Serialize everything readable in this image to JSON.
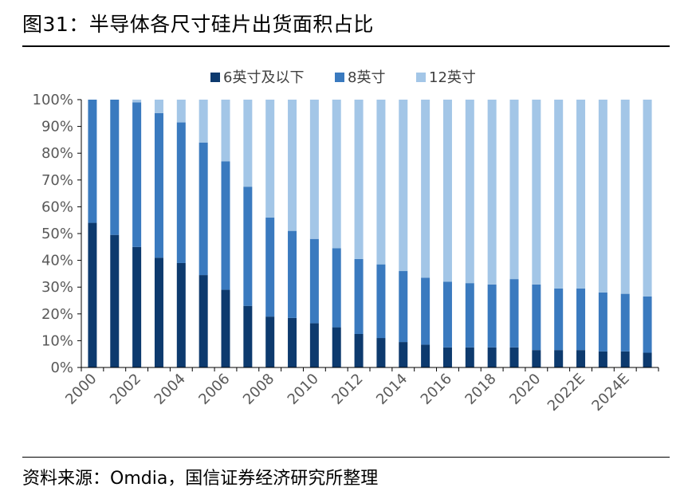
{
  "title": "图31：半导体各尺寸硅片出货面积占比",
  "source": "资料来源：Omdia，国信证券经济研究所整理",
  "colors": {
    "s6": "#0d3a6e",
    "s8": "#3a7abf",
    "s12": "#a3c6e7",
    "axis": "#000000",
    "text": "#595959"
  },
  "chart_data": {
    "type": "bar",
    "stacked": true,
    "percent": true,
    "categories": [
      "2000",
      "2001",
      "2002",
      "2003",
      "2004",
      "2005",
      "2006",
      "2007",
      "2008",
      "2009",
      "2010",
      "2011",
      "2012",
      "2013",
      "2014",
      "2015",
      "2016",
      "2017",
      "2018",
      "2019",
      "2020",
      "2021",
      "2022E",
      "2023E",
      "2024E",
      "2025E"
    ],
    "x_tick_labels": [
      "2000",
      "",
      "2002",
      "",
      "2004",
      "",
      "2006",
      "",
      "2008",
      "",
      "2010",
      "",
      "2012",
      "",
      "2014",
      "",
      "2016",
      "",
      "2018",
      "",
      "2020",
      "",
      "2022E",
      "",
      "2024E",
      ""
    ],
    "y_tick_labels": [
      "0%",
      "10%",
      "20%",
      "30%",
      "40%",
      "50%",
      "60%",
      "70%",
      "80%",
      "90%",
      "100%"
    ],
    "ylim": [
      0,
      100
    ],
    "legend_position": "top-center",
    "series": [
      {
        "name": "6英寸及以下",
        "values": [
          54,
          49.5,
          45,
          41,
          39,
          34.5,
          29,
          23,
          19,
          18.5,
          16.5,
          15,
          12.5,
          11,
          9.5,
          8.5,
          7.5,
          7.5,
          7.5,
          7.5,
          6.5,
          6.5,
          6.5,
          6,
          6,
          5.5
        ]
      },
      {
        "name": "8英寸",
        "values": [
          46,
          50.5,
          54,
          54,
          52.5,
          49.5,
          48,
          44.5,
          37,
          32.5,
          31.5,
          29.5,
          28,
          27.5,
          26.5,
          25,
          24.5,
          24,
          23.5,
          25.5,
          24.5,
          23,
          23,
          22,
          21.5,
          21
        ]
      },
      {
        "name": "12英寸",
        "values": [
          0,
          0,
          1,
          5,
          8.5,
          16,
          23,
          32.5,
          44,
          49,
          52,
          55.5,
          59.5,
          61.5,
          64,
          66.5,
          68,
          68.5,
          69,
          67,
          69,
          70.5,
          70.5,
          72,
          72.5,
          73.5
        ]
      }
    ]
  }
}
